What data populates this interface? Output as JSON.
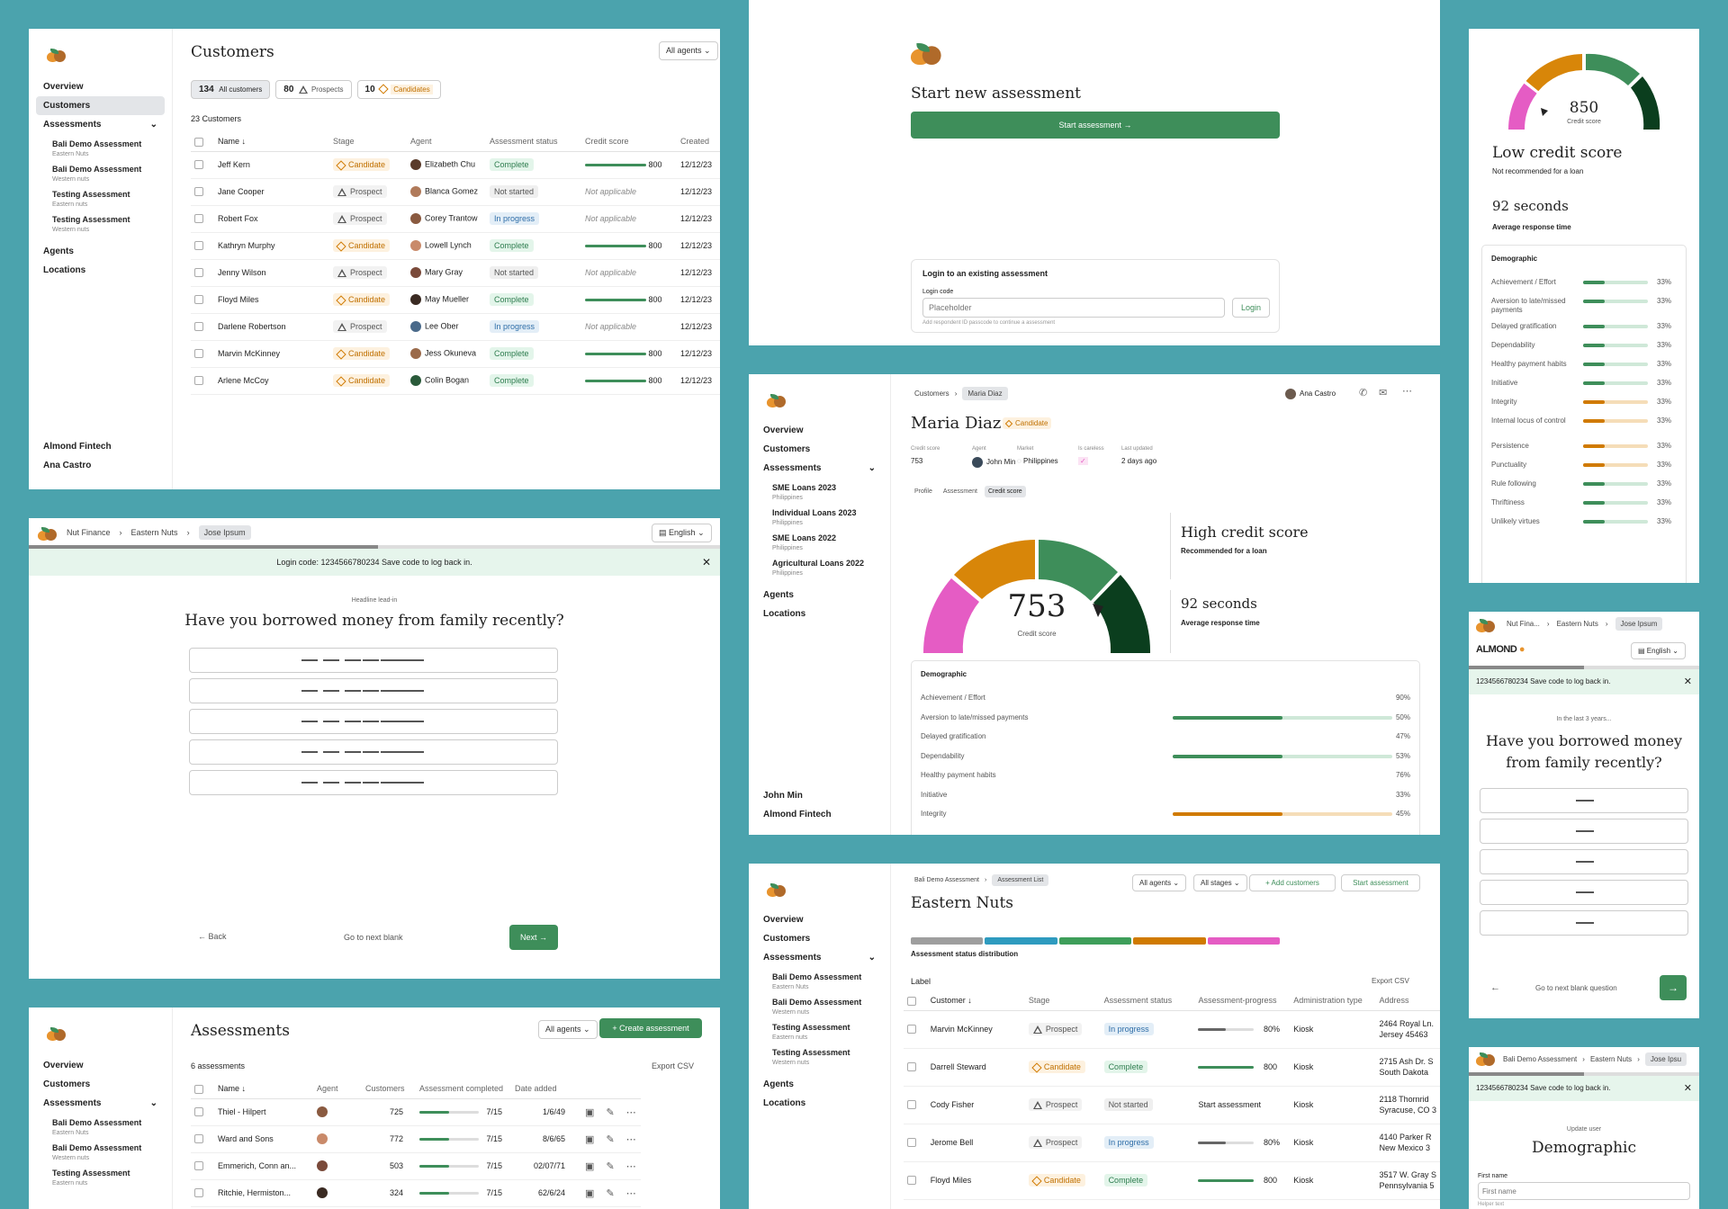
{
  "p1": {
    "title": "Customers",
    "agent_select": "All agents",
    "nav": [
      "Overview",
      "Customers",
      "Assessments",
      "Agents",
      "Locations"
    ],
    "assessments": [
      {
        "name": "Bali Demo Assessment",
        "sub": "Eastern Nuts"
      },
      {
        "name": "Bali Demo Assessment",
        "sub": "Western nuts"
      },
      {
        "name": "Testing Assessment",
        "sub": "Eastern nuts"
      },
      {
        "name": "Testing Assessment",
        "sub": "Western nuts"
      }
    ],
    "footer_org": "Almond Fintech",
    "footer_user": "Ana Castro",
    "filters": [
      {
        "count": "134",
        "label": "All customers"
      },
      {
        "count": "80",
        "label": "Prospects"
      },
      {
        "count": "10",
        "label": "Candidates"
      }
    ],
    "count_text": "23 Customers",
    "headers": [
      "Name",
      "Stage",
      "Agent",
      "Assessment status",
      "Credit score",
      "Created"
    ],
    "rows": [
      {
        "name": "Jeff Kern",
        "stage": "Candidate",
        "agent": "Elizabeth Chu",
        "status": "Complete",
        "score": "800",
        "created": "12/12/23"
      },
      {
        "name": "Jane Cooper",
        "stage": "Prospect",
        "agent": "Blanca Gomez",
        "status": "Not started",
        "score": "Not applicable",
        "created": "12/12/23"
      },
      {
        "name": "Robert Fox",
        "stage": "Prospect",
        "agent": "Corey Trantow",
        "status": "In progress",
        "score": "Not applicable",
        "created": "12/12/23"
      },
      {
        "name": "Kathryn Murphy",
        "stage": "Candidate",
        "agent": "Lowell Lynch",
        "status": "Complete",
        "score": "800",
        "created": "12/12/23"
      },
      {
        "name": "Jenny Wilson",
        "stage": "Prospect",
        "agent": "Mary Gray",
        "status": "Not started",
        "score": "Not applicable",
        "created": "12/12/23"
      },
      {
        "name": "Floyd Miles",
        "stage": "Candidate",
        "agent": "May Mueller",
        "status": "Complete",
        "score": "800",
        "created": "12/12/23"
      },
      {
        "name": "Darlene Robertson",
        "stage": "Prospect",
        "agent": "Lee Ober",
        "status": "In progress",
        "score": "Not applicable",
        "created": "12/12/23"
      },
      {
        "name": "Marvin McKinney",
        "stage": "Candidate",
        "agent": "Jess Okuneva",
        "status": "Complete",
        "score": "800",
        "created": "12/12/23"
      },
      {
        "name": "Arlene McCoy",
        "stage": "Candidate",
        "agent": "Colin Bogan",
        "status": "Complete",
        "score": "800",
        "created": "12/12/23"
      }
    ]
  },
  "p2": {
    "title": "Start new assessment",
    "start_btn": "Start assessment",
    "login_title": "Login to an existing assessment",
    "login_label": "Login code",
    "login_placeholder": "Placeholder",
    "login_help": "Add respondent ID passcode to continue a assessment",
    "login_btn": "Login"
  },
  "p3": {
    "score": "850",
    "score_label": "Credit score",
    "headline": "Low credit score",
    "sub": "Not recommended for a loan",
    "time": "92 seconds",
    "time_label": "Average response time",
    "demo_title": "Demographic",
    "rows": [
      {
        "label": "Achievement / Effort",
        "pct": "33%",
        "color": "#3E8E5A"
      },
      {
        "label": "Aversion to late/missed payments",
        "pct": "33%",
        "color": "#3E8E5A"
      },
      {
        "label": "Delayed gratification",
        "pct": "33%",
        "color": "#3E8E5A"
      },
      {
        "label": "Dependability",
        "pct": "33%",
        "color": "#3E8E5A"
      },
      {
        "label": "Healthy payment habits",
        "pct": "33%",
        "color": "#3E8E5A"
      },
      {
        "label": "Initiative",
        "pct": "33%",
        "color": "#3E8E5A"
      },
      {
        "label": "Integrity",
        "pct": "33%",
        "color": "#D07A00"
      },
      {
        "label": "Internal locus of control",
        "pct": "33%",
        "color": "#D07A00"
      },
      {
        "label": "Persistence",
        "pct": "33%",
        "color": "#D07A00"
      },
      {
        "label": "Punctuality",
        "pct": "33%",
        "color": "#D07A00"
      },
      {
        "label": "Rule following",
        "pct": "33%",
        "color": "#3E8E5A"
      },
      {
        "label": "Thriftiness",
        "pct": "33%",
        "color": "#3E8E5A"
      },
      {
        "label": "Unlikely virtues",
        "pct": "33%",
        "color": "#3E8E5A"
      }
    ]
  },
  "p4": {
    "crumbs": [
      "Nut Finance",
      "Eastern Nuts",
      "Jose Ipsum"
    ],
    "lang": "English",
    "banner": "Login code: 1234566780234  Save code to log back in.",
    "lead": "Headline lead-in",
    "question": "Have you borrowed money from family recently?",
    "back": "Back",
    "skip": "Go to next blank",
    "next": "Next"
  },
  "p5": {
    "crumbs": [
      "Customers",
      "Maria Diaz"
    ],
    "user": "Ana Castro",
    "name": "Maria Diaz",
    "stage": "Candidate",
    "meta": [
      {
        "label": "Credit score",
        "value": "753"
      },
      {
        "label": "Agent",
        "value": "John Min"
      },
      {
        "label": "Market",
        "value": "Philippines"
      },
      {
        "label": "Is careless",
        "value": "✓"
      },
      {
        "label": "Last updated",
        "value": "2 days ago"
      }
    ],
    "tabs": [
      "Profile",
      "Assessment",
      "Credit score"
    ],
    "nav": [
      "Overview",
      "Customers",
      "Assessments",
      "Agents",
      "Locations"
    ],
    "assessments": [
      {
        "name": "SME Loans 2023",
        "sub": "Philippines"
      },
      {
        "name": "Individual Loans 2023",
        "sub": "Philippines"
      },
      {
        "name": "SME Loans 2022",
        "sub": "Philippines"
      },
      {
        "name": "Agricultural Loans 2022",
        "sub": "Philippines"
      }
    ],
    "footer_user": "John Min",
    "footer_org": "Almond Fintech",
    "score": "753",
    "score_label": "Credit score",
    "headline": "High credit score",
    "sub": "Recommended for a loan",
    "time": "92 seconds",
    "time_label": "Average response time",
    "demo_title": "Demographic",
    "rows": [
      {
        "label": "Achievement / Effort",
        "pct": "90%",
        "fill": 0,
        "color": "#3E8E5A"
      },
      {
        "label": "Aversion to late/missed payments",
        "pct": "50%",
        "fill": 0.5,
        "color": "#3E8E5A"
      },
      {
        "label": "Delayed gratification",
        "pct": "47%",
        "fill": 0,
        "color": "#3E8E5A"
      },
      {
        "label": "Dependability",
        "pct": "53%",
        "fill": 0.5,
        "color": "#3E8E5A"
      },
      {
        "label": "Healthy payment habits",
        "pct": "76%",
        "fill": 0,
        "color": "#3E8E5A"
      },
      {
        "label": "Initiative",
        "pct": "33%",
        "fill": 0,
        "color": "#3E8E5A"
      },
      {
        "label": "Integrity",
        "pct": "45%",
        "fill": 0.5,
        "color": "#D07A00"
      }
    ]
  },
  "p6": {
    "logo_text": "ALMOND",
    "crumbs": [
      "Nut Fina...",
      "Eastern Nuts",
      "Jose Ipsum"
    ],
    "lang": "English",
    "banner": "1234566780234  Save code to log back in.",
    "lead": "In the last 3 years...",
    "question": "Have you borrowed money from family recently?",
    "skip": "Go to next blank question"
  },
  "p7": {
    "title": "Assessments",
    "agent_select": "All agents",
    "create_btn": "Create assessment",
    "count_text": "6 assessments",
    "export": "Export CSV",
    "nav": [
      "Overview",
      "Customers",
      "Assessments"
    ],
    "assessments": [
      {
        "name": "Bali Demo Assessment",
        "sub": "Eastern Nuts"
      },
      {
        "name": "Bali Demo Assessment",
        "sub": "Western nuts"
      },
      {
        "name": "Testing Assessment",
        "sub": "Eastern nuts"
      }
    ],
    "headers": [
      "Name",
      "Agent",
      "Customers",
      "Assessment completed",
      "Date added"
    ],
    "rows": [
      {
        "name": "Thiel - Hilpert",
        "customers": "725",
        "completed": "7/15",
        "date": "1/6/49"
      },
      {
        "name": "Ward and Sons",
        "customers": "772",
        "completed": "7/15",
        "date": "8/6/65"
      },
      {
        "name": "Emmerich, Conn an...",
        "customers": "503",
        "completed": "7/15",
        "date": "02/07/71"
      },
      {
        "name": "Ritchie, Hermiston...",
        "customers": "324",
        "completed": "7/15",
        "date": "62/6/24"
      }
    ]
  },
  "p8": {
    "crumbs": [
      "Bali Demo Assessment",
      "Assessment List"
    ],
    "agents": "All agents",
    "stages": "All stages",
    "add_btn": "Add customers",
    "start_btn": "Start assessment",
    "title": "Eastern Nuts",
    "dist_label": "Assessment status distribution",
    "dist_colors": [
      "#9E9E9E",
      "#2E9BBF",
      "#3E9E5A",
      "#D07A00",
      "#E55CC4"
    ],
    "label": "Label",
    "export": "Export CSV",
    "nav": [
      "Overview",
      "Customers",
      "Assessments",
      "Agents",
      "Locations"
    ],
    "assessments": [
      {
        "name": "Bali Demo Assessment",
        "sub": "Eastern Nuts"
      },
      {
        "name": "Bali Demo Assessment",
        "sub": "Western nuts"
      },
      {
        "name": "Testing Assessment",
        "sub": "Eastern nuts"
      },
      {
        "name": "Testing Assessment",
        "sub": "Western nuts"
      }
    ],
    "headers": [
      "Customer",
      "Stage",
      "Assessment status",
      "Assessment-progress",
      "Administration type",
      "Address"
    ],
    "rows": [
      {
        "name": "Marvin McKinney",
        "stage": "Prospect",
        "status": "In progress",
        "progress": "80%",
        "type": "Kiosk",
        "addr1": "2464 Royal Ln.",
        "addr2": "Jersey 45463"
      },
      {
        "name": "Darrell Steward",
        "stage": "Candidate",
        "status": "Complete",
        "progress": "800",
        "type": "Kiosk",
        "addr1": "2715 Ash Dr. S",
        "addr2": "South Dakota"
      },
      {
        "name": "Cody Fisher",
        "stage": "Prospect",
        "status": "Not started",
        "progress": "Start assessment",
        "type": "Kiosk",
        "addr1": "2118 Thornrid",
        "addr2": "Syracuse, CO 3"
      },
      {
        "name": "Jerome Bell",
        "stage": "Prospect",
        "status": "In progress",
        "progress": "80%",
        "type": "Kiosk",
        "addr1": "4140 Parker R",
        "addr2": "New Mexico 3"
      },
      {
        "name": "Floyd Miles",
        "stage": "Candidate",
        "status": "Complete",
        "progress": "800",
        "type": "Kiosk",
        "addr1": "3517 W. Gray S",
        "addr2": "Pennsylvania 5"
      }
    ]
  },
  "p9": {
    "crumbs": [
      "Bali Demo Assessment",
      "Eastern Nuts",
      "Jose Ipsu"
    ],
    "banner": "1234566780234  Save code to log back in.",
    "lead": "Update user",
    "title": "Demographic",
    "field_label": "First name",
    "field_placeholder": "First name",
    "field_help": "Helper text"
  }
}
